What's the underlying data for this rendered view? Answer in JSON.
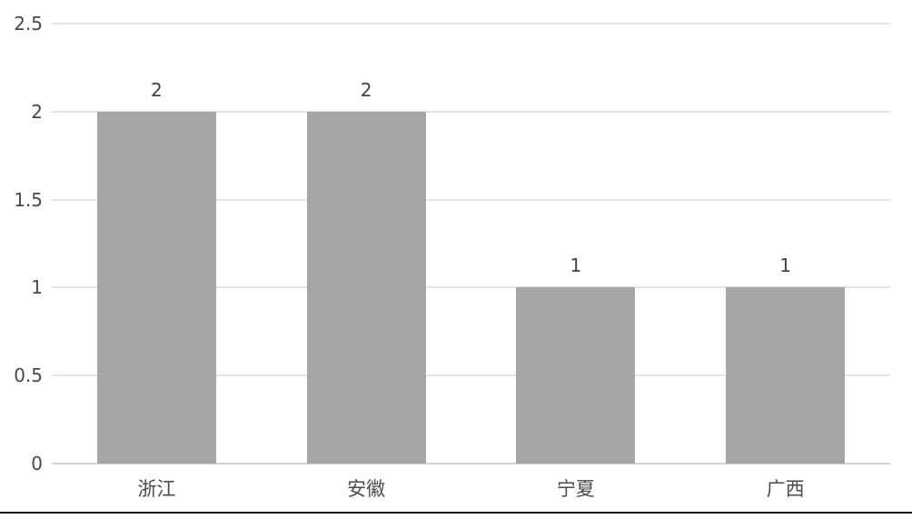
{
  "chart_data": {
    "type": "bar",
    "title": "",
    "xlabel": "",
    "ylabel": "",
    "categories": [
      "浙江",
      "安徽",
      "宁夏",
      "广西"
    ],
    "values": [
      2,
      2,
      1,
      1
    ],
    "value_labels": [
      "2",
      "2",
      "1",
      "1"
    ],
    "yticks": [
      {
        "label": "0",
        "value": 0
      },
      {
        "label": "0.5",
        "value": 0.5
      },
      {
        "label": "1",
        "value": 1
      },
      {
        "label": "1.5",
        "value": 1.5
      },
      {
        "label": "2",
        "value": 2
      },
      {
        "label": "2.5",
        "value": 2.5
      }
    ],
    "ylim": [
      0,
      2.5
    ],
    "grid": true,
    "legend": "none",
    "colors": {
      "bar_fill": "#a6a6a6",
      "gridline": "#e5e5e5",
      "axis_line": "#d4d4d4",
      "tick_text": "#444a51",
      "value_label_text": "#3f434a",
      "category_text": "#4a4a4a",
      "bottom_rule": "#1a1a1a",
      "background": "#ffffff"
    }
  }
}
